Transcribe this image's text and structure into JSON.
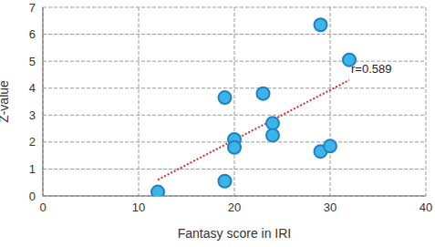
{
  "chart_data": {
    "type": "scatter",
    "x_label": "Fantasy score in IRI",
    "y_label": "Z-value",
    "x": [
      12,
      19,
      19,
      20,
      20,
      23,
      24,
      24,
      29,
      29,
      30,
      32
    ],
    "values": [
      0.15,
      0.55,
      3.65,
      2.1,
      1.8,
      3.8,
      2.7,
      2.25,
      6.35,
      1.65,
      1.85,
      5.05
    ],
    "color": "#3cb4e5",
    "marker": "circle",
    "xlim": [
      0,
      40
    ],
    "xticks": [
      0,
      10,
      20,
      30,
      40
    ],
    "ylim": [
      0,
      7
    ],
    "yticks": [
      0,
      1,
      2,
      3,
      4,
      5,
      6,
      7
    ],
    "grid": true,
    "trend_line": {
      "x": [
        12,
        32
      ],
      "y": [
        0.6,
        4.3
      ],
      "color": "#d0302a",
      "line_style": "dotted"
    },
    "annotation": "r=0.589"
  }
}
